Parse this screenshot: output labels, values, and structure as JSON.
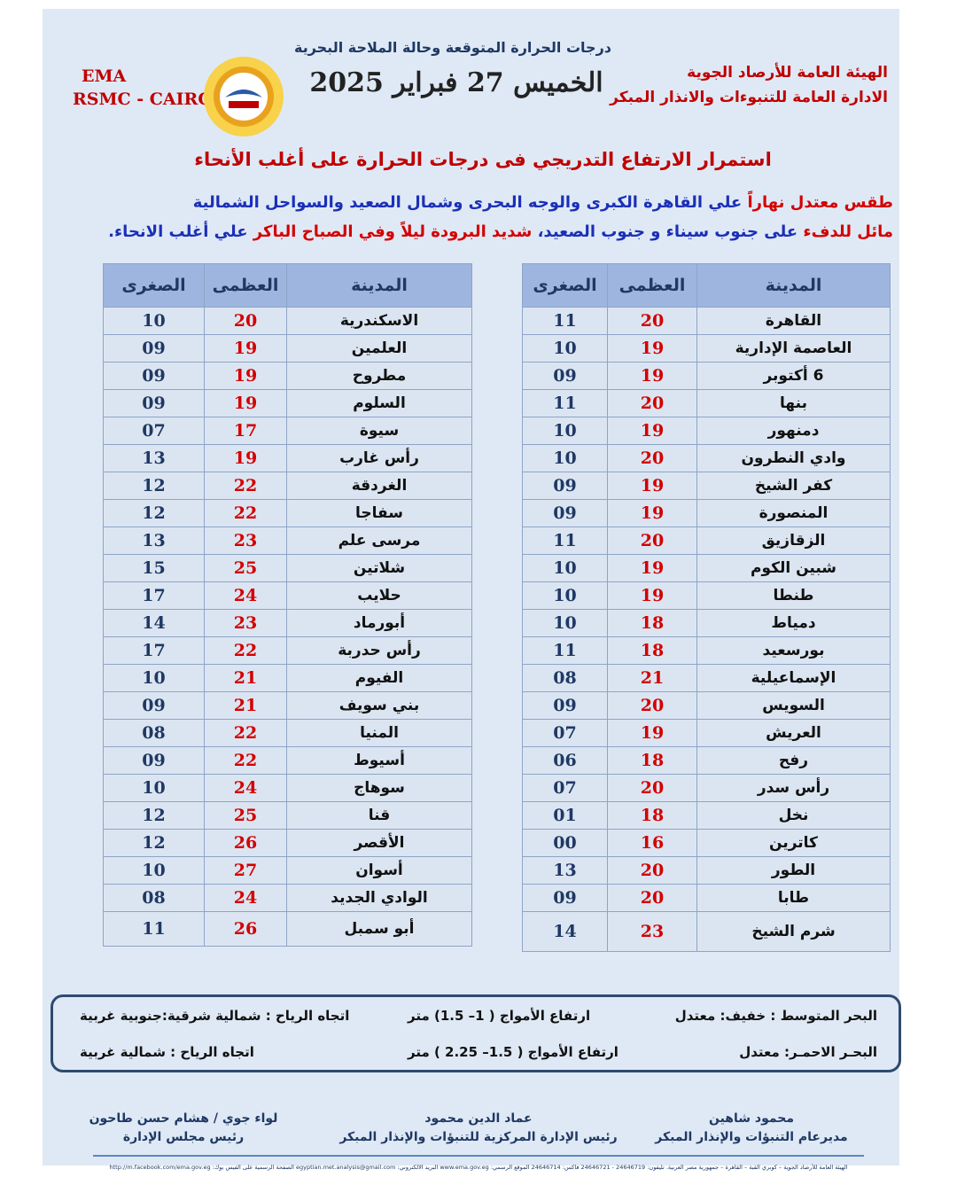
{
  "header": {
    "subtitle": "درجات الحرارة المتوقعة وحالة الملاحة البحرية",
    "date": "الخميس 27 فبراير 2025",
    "org_line1": "الهيئة العامة للأرصاد الجوية",
    "org_line2": "الادارة العامة للتنبوءات والانذار المبكر",
    "ema": "EMA",
    "rsmc": "RSMC - CAIRO"
  },
  "headline": "استمرار الارتفاع التدريجي فى درجات الحرارة على أغلب الأنحاء",
  "summary": {
    "line1": [
      {
        "text": "طقس معتدل نهاراً",
        "color": "red"
      },
      {
        "text": " علي القاهرة الكبرى والوجه البحرى وشمال الصعيد والسواحل الشمالية",
        "color": "blue"
      }
    ],
    "line2": [
      {
        "text": "مائل للدفء",
        "color": "red"
      },
      {
        "text": " على جنوب سيناء و جنوب الصعيد، ",
        "color": "blue"
      },
      {
        "text": "شديد البرودة ليلاً وفي الصباح الباكر",
        "color": "red"
      },
      {
        "text": " علي أغلب الانحاء.",
        "color": "blue"
      }
    ]
  },
  "tables": [
    {
      "columns": [
        "المدينة",
        "العظمى",
        "الصغرى"
      ],
      "rows": [
        [
          "القاهرة",
          "20",
          "11"
        ],
        [
          "العاصمة الإدارية",
          "19",
          "10"
        ],
        [
          "6 أكتوبر",
          "19",
          "09"
        ],
        [
          "بنها",
          "20",
          "11"
        ],
        [
          "دمنهور",
          "19",
          "10"
        ],
        [
          "وادي النطرون",
          "20",
          "10"
        ],
        [
          "كفر الشيخ",
          "19",
          "09"
        ],
        [
          "المنصورة",
          "19",
          "09"
        ],
        [
          "الزقازيق",
          "20",
          "11"
        ],
        [
          "شبين الكوم",
          "19",
          "10"
        ],
        [
          "طنطا",
          "19",
          "10"
        ],
        [
          "دمياط",
          "18",
          "10"
        ],
        [
          "بورسعيد",
          "18",
          "11"
        ],
        [
          "الإسماعيلية",
          "21",
          "08"
        ],
        [
          "السويس",
          "20",
          "09"
        ],
        [
          "العريش",
          "19",
          "07"
        ],
        [
          "رفح",
          "18",
          "06"
        ],
        [
          "رأس سدر",
          "20",
          "07"
        ],
        [
          "نخل",
          "18",
          "01"
        ],
        [
          "كاترين",
          "16",
          "00"
        ],
        [
          "الطور",
          "20",
          "13"
        ],
        [
          "طابا",
          "20",
          "09"
        ],
        [
          "شرم الشيخ",
          "23",
          "14"
        ]
      ]
    },
    {
      "columns": [
        "المدينة",
        "العظمى",
        "الصغرى"
      ],
      "rows": [
        [
          "الاسكندرية",
          "20",
          "10"
        ],
        [
          "العلمين",
          "19",
          "09"
        ],
        [
          "مطروح",
          "19",
          "09"
        ],
        [
          "السلوم",
          "19",
          "09"
        ],
        [
          "سيوة",
          "17",
          "07"
        ],
        [
          "رأس غارب",
          "19",
          "13"
        ],
        [
          "الغردقة",
          "22",
          "12"
        ],
        [
          "سفاجا",
          "22",
          "12"
        ],
        [
          "مرسى علم",
          "23",
          "13"
        ],
        [
          "شلاتين",
          "25",
          "15"
        ],
        [
          "حلايب",
          "24",
          "17"
        ],
        [
          "أبورماد",
          "23",
          "14"
        ],
        [
          "رأس حدربة",
          "22",
          "17"
        ],
        [
          "الفيوم",
          "21",
          "10"
        ],
        [
          "بني سويف",
          "21",
          "09"
        ],
        [
          "المنيا",
          "22",
          "08"
        ],
        [
          "أسيوط",
          "22",
          "09"
        ],
        [
          "سوهاج",
          "24",
          "10"
        ],
        [
          "قنا",
          "25",
          "12"
        ],
        [
          "الأقصر",
          "26",
          "12"
        ],
        [
          "أسوان",
          "27",
          "10"
        ],
        [
          "الوادي الجديد",
          "24",
          "08"
        ],
        [
          "أبو سمبل",
          "26",
          "11"
        ]
      ]
    }
  ],
  "sea": [
    [
      "البحر المتوسط :  خفيف: معتدل",
      "ارتفاع الأمواج ( 1– 1.5) متر",
      "اتجاه الرياح : شمالية شرقية:جنوبية غربية"
    ],
    [
      "البحـر الاحمـر:  معتدل",
      "ارتفاع الأمواج ( 1.5– 2.25 ) متر",
      "اتجاه الرياح : شمالية غربية"
    ]
  ],
  "signatures": [
    {
      "name": "محمود شاهين",
      "role": "مديرعام التنبؤات والإنذار المبكر"
    },
    {
      "name": "عماد الدين محمود",
      "role": "رئيس الإدارة المركزية للتنبؤات والإنذار المبكر"
    },
    {
      "name": "لواء جوي / هشام حسن طاحون",
      "role": "رئيس مجلس الإدارة"
    }
  ],
  "footer": "الهيئة العامة للأرصاد الجوية – كوبري القبة – القاهرة – جمهورية مصر العربية. تليفون: 24646719 - 24646721 فاكس: 24646714 الموقع الرسمي: www.ema.gov.eg البريد الالكتروني: egyptian.met.analysis@gmail.com الصفحة الرسمية على الفيس بوك: http://m.facebook.com/ema.gov.eg"
}
